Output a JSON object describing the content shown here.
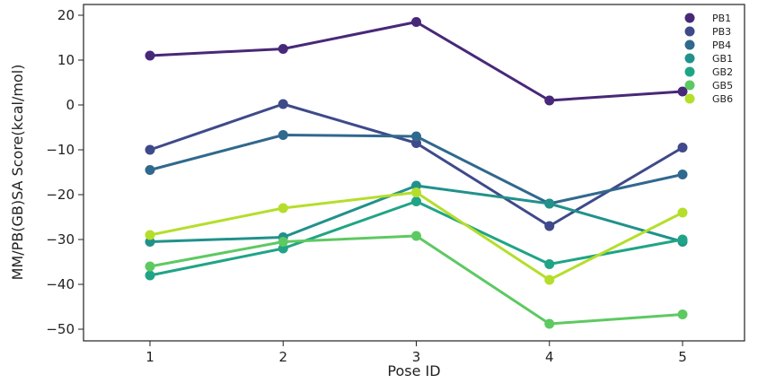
{
  "chart_data": {
    "type": "line",
    "xlabel": "Pose ID",
    "ylabel": "MM/PB(GB)SA Score(kcal/mol)",
    "x": [
      1,
      2,
      3,
      4,
      5
    ],
    "xticks": [
      "1",
      "2",
      "3",
      "4",
      "5"
    ],
    "ylim": [
      -53,
      22
    ],
    "yticks": [
      20,
      10,
      0,
      -10,
      -20,
      -30,
      -40,
      -50
    ],
    "ytick_labels": [
      "20",
      "10",
      "0",
      "−10",
      "−20",
      "−30",
      "−40",
      "−50"
    ],
    "grid": false,
    "legend_position": "top-right",
    "series": [
      {
        "name": "PB1",
        "color": "#482878",
        "values": [
          11.0,
          12.5,
          18.5,
          1.0,
          3.0
        ]
      },
      {
        "name": "PB3",
        "color": "#3e4a89",
        "values": [
          -10.0,
          0.2,
          -8.5,
          -27.0,
          -9.5
        ]
      },
      {
        "name": "PB4",
        "color": "#31688e",
        "values": [
          -14.5,
          -6.7,
          -7.0,
          -22.0,
          -15.5
        ]
      },
      {
        "name": "GB1",
        "color": "#21918c",
        "values": [
          -30.5,
          -29.5,
          -18.0,
          -22.0,
          -30.5
        ]
      },
      {
        "name": "GB2",
        "color": "#20a486",
        "values": [
          -38.0,
          -32.0,
          -21.5,
          -35.5,
          -30.0
        ]
      },
      {
        "name": "GB5",
        "color": "#5ec962",
        "values": [
          -36.0,
          -30.5,
          -29.2,
          -48.8,
          -46.7
        ]
      },
      {
        "name": "GB6",
        "color": "#b5de2b",
        "values": [
          -29.0,
          -23.0,
          -19.5,
          -39.0,
          -24.0
        ]
      }
    ]
  }
}
